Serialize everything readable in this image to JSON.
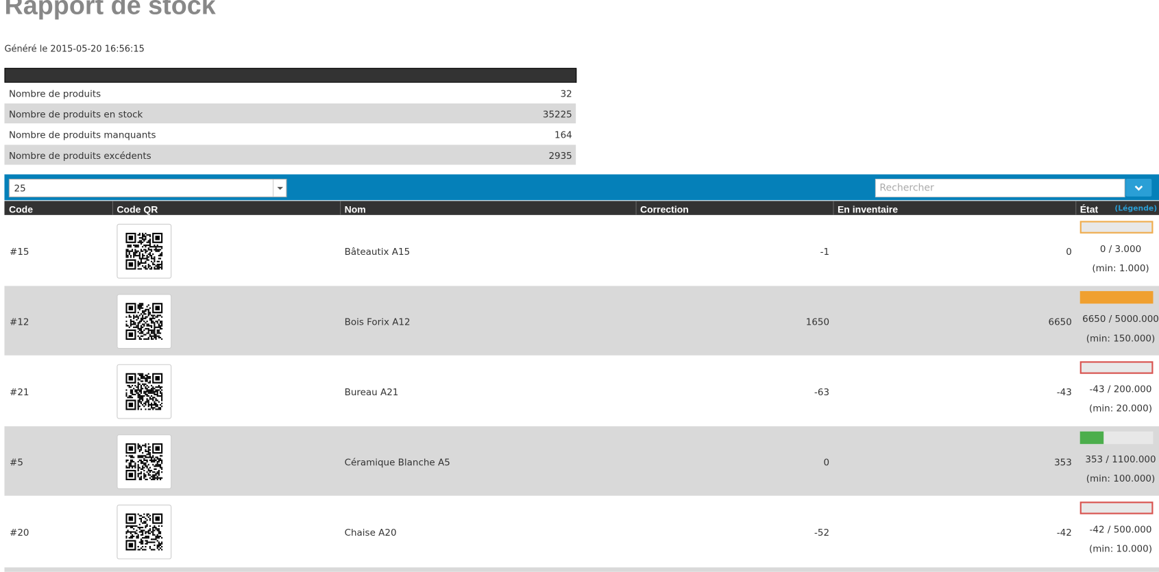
{
  "header": {
    "title": "Rapport de stock",
    "generated": "Généré le 2015-05-20 16:56:15"
  },
  "summary": {
    "rows": [
      [
        "Nombre de produits",
        "32"
      ],
      [
        "Nombre de produits en stock",
        "35225"
      ],
      [
        "Nombre de produits manquants",
        "164"
      ],
      [
        "Nombre de produits excédents",
        "2935"
      ]
    ]
  },
  "controls": {
    "page_size": "25",
    "search_placeholder": "Rechercher"
  },
  "table": {
    "headers": [
      "Code",
      "Code QR",
      "Nom",
      "Correction",
      "En inventaire",
      "État"
    ],
    "legend_link": "(Légende)",
    "rows": [
      {
        "code": "#15",
        "name": "Bâteautix A15",
        "correction": "-1",
        "inventory": "0",
        "state": "0 / 3.000",
        "min": "(min: 1.000)",
        "bar": {
          "color": "#f0ad4e",
          "fill": 0
        }
      },
      {
        "code": "#12",
        "name": "Bois Forix A12",
        "correction": "1650",
        "inventory": "6650",
        "state": "6650 / 5000.000",
        "min": "(min: 150.000)",
        "bar": {
          "color": "#f0a030",
          "fill": 1
        }
      },
      {
        "code": "#21",
        "name": "Bureau A21",
        "correction": "-63",
        "inventory": "-43",
        "state": "-43 / 200.000",
        "min": "(min: 20.000)",
        "bar": {
          "color": "#d9534f",
          "fill": 0
        }
      },
      {
        "code": "#5",
        "name": "Céramique Blanche A5",
        "correction": "0",
        "inventory": "353",
        "state": "353 / 1100.000",
        "min": "(min: 100.000)",
        "bar": {
          "color": "#4cae4c",
          "fill": 0.32
        }
      },
      {
        "code": "#20",
        "name": "Chaise A20",
        "correction": "-52",
        "inventory": "-42",
        "state": "-42 / 500.000",
        "min": "(min: 10.000)",
        "bar": {
          "color": "#d9534f",
          "fill": 0
        }
      }
    ]
  }
}
